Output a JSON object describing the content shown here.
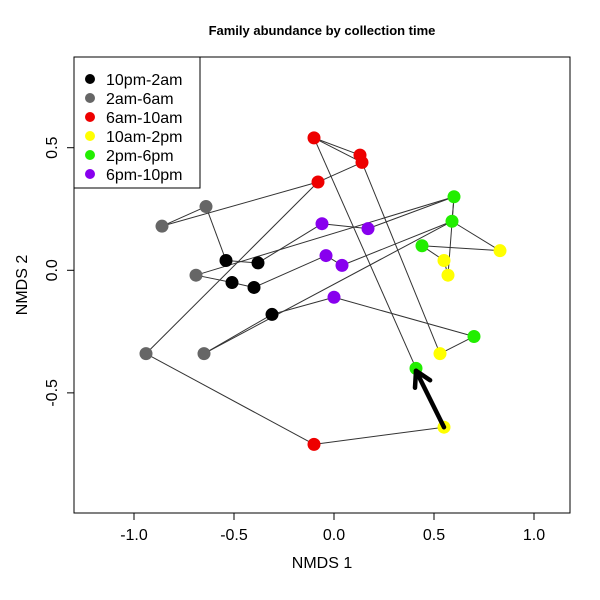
{
  "chart_data": {
    "type": "scatter",
    "title": "Family abundance by collection time",
    "xlabel": "NMDS 1",
    "ylabel": "NMDS 2",
    "xlim": [
      -1.3,
      1.18
    ],
    "ylim": [
      -0.99,
      0.87
    ],
    "x_ticks": [
      -1.0,
      -0.5,
      0.0,
      0.5,
      1.0
    ],
    "x_tick_labels": [
      "-1.0",
      "-0.5",
      "0.0",
      "0.5",
      "1.0"
    ],
    "y_ticks": [
      -0.5,
      0.0,
      0.5
    ],
    "y_tick_labels": [
      "-0.5",
      "0.0",
      "0.5"
    ],
    "grid": false,
    "legend_position": "top-left",
    "series": [
      {
        "name": "10pm-2am",
        "color": "#000000",
        "points": [
          [
            -0.54,
            0.04
          ],
          [
            -0.38,
            0.03
          ],
          [
            -0.51,
            -0.05
          ],
          [
            -0.4,
            -0.07
          ],
          [
            -0.31,
            -0.18
          ]
        ]
      },
      {
        "name": "2am-6am",
        "color": "#666666",
        "points": [
          [
            -0.86,
            0.18
          ],
          [
            -0.64,
            0.26
          ],
          [
            -0.69,
            -0.02
          ],
          [
            -0.94,
            -0.34
          ],
          [
            -0.65,
            -0.34
          ]
        ]
      },
      {
        "name": "6am-10am",
        "color": "#ee0000",
        "points": [
          [
            -0.1,
            0.54
          ],
          [
            0.13,
            0.47
          ],
          [
            0.14,
            0.44
          ],
          [
            -0.08,
            0.36
          ],
          [
            -0.1,
            -0.71
          ]
        ]
      },
      {
        "name": "10am-2pm",
        "color": "#ffff00",
        "points": [
          [
            0.83,
            0.08
          ],
          [
            0.55,
            0.04
          ],
          [
            0.57,
            -0.02
          ],
          [
            0.53,
            -0.34
          ],
          [
            0.55,
            -0.64
          ]
        ]
      },
      {
        "name": "2pm-6pm",
        "color": "#22ee00",
        "points": [
          [
            0.6,
            0.3
          ],
          [
            0.59,
            0.2
          ],
          [
            0.44,
            0.1
          ],
          [
            0.7,
            -0.27
          ],
          [
            0.41,
            -0.4
          ]
        ]
      },
      {
        "name": "6pm-10pm",
        "color": "#8800ee",
        "points": [
          [
            -0.06,
            0.19
          ],
          [
            0.17,
            0.17
          ],
          [
            -0.04,
            0.06
          ],
          [
            0.04,
            0.02
          ],
          [
            0.0,
            -0.11
          ]
        ]
      }
    ],
    "path": [
      [
        -0.1,
        0.54
      ],
      [
        0.13,
        0.47
      ],
      [
        0.14,
        0.44
      ],
      [
        -0.08,
        0.36
      ],
      [
        -0.86,
        0.18
      ],
      [
        -0.64,
        0.26
      ],
      [
        -0.54,
        0.04
      ],
      [
        -0.38,
        0.03
      ],
      [
        -0.06,
        0.19
      ],
      [
        0.17,
        0.17
      ],
      [
        0.6,
        0.3
      ],
      [
        0.59,
        0.2
      ],
      [
        0.83,
        0.08
      ],
      [
        0.44,
        0.1
      ],
      [
        0.55,
        0.04
      ],
      [
        0.57,
        -0.02
      ],
      [
        0.6,
        0.3
      ],
      [
        -0.69,
        -0.02
      ],
      [
        -0.51,
        -0.05
      ],
      [
        -0.4,
        -0.07
      ],
      [
        -0.04,
        0.06
      ],
      [
        0.04,
        0.02
      ],
      [
        0.59,
        0.2
      ],
      [
        -0.65,
        -0.34
      ],
      [
        -0.31,
        -0.18
      ],
      [
        0.0,
        -0.11
      ],
      [
        0.7,
        -0.27
      ],
      [
        0.53,
        -0.34
      ],
      [
        0.14,
        0.44
      ],
      [
        -0.1,
        0.54
      ],
      [
        0.41,
        -0.4
      ],
      [
        0.55,
        -0.64
      ],
      [
        -0.1,
        -0.71
      ],
      [
        -0.94,
        -0.34
      ],
      [
        -0.08,
        0.36
      ]
    ],
    "arrow": {
      "from": [
        0.55,
        -0.64
      ],
      "to": [
        0.41,
        -0.41
      ],
      "color": "#000000"
    }
  }
}
